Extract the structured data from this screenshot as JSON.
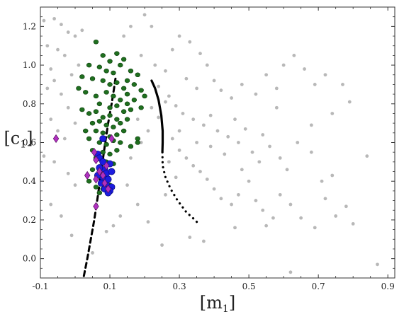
{
  "chart_data": {
    "type": "scatter",
    "xlabel": "[m",
    "xlabel_sub": "1",
    "xlabel_close": "]",
    "ylabel": "[c",
    "ylabel_sub": "1",
    "ylabel_close": "]",
    "xlim": [
      -0.1,
      0.92
    ],
    "ylim": [
      -0.1,
      1.3
    ],
    "xticks": [
      -0.1,
      0.1,
      0.3,
      0.5,
      0.7,
      0.9
    ],
    "yticks": [
      0.0,
      0.2,
      0.4,
      0.6,
      0.8,
      1.0,
      1.2
    ],
    "xtick_labels": [
      "-0.1",
      "0.1",
      "0.3",
      "0.5",
      "0.7",
      "0.9"
    ],
    "ytick_labels": [
      "0.0",
      "0.2",
      "0.4",
      "0.6",
      "0.8",
      "1.0",
      "1.2"
    ],
    "colors": {
      "gray": "#b8b8b8",
      "green": "#1f6f1f",
      "green_edge": "#0d3d0d",
      "blue": "#1c1ce0",
      "blue_edge": "#0a0a7a",
      "magenta": "#b030c0",
      "magenta_edge": "#5a1060",
      "line": "#000000"
    },
    "series": [
      {
        "marker": "circle-gray",
        "points": [
          [
            -0.09,
            1.23
          ],
          [
            -0.06,
            1.24
          ],
          [
            -0.04,
            1.21
          ],
          [
            -0.02,
            1.17
          ],
          [
            0.0,
            1.15
          ],
          [
            0.02,
            1.18
          ],
          [
            -0.08,
            1.1
          ],
          [
            -0.05,
            1.08
          ],
          [
            -0.03,
            1.05
          ],
          [
            -0.07,
            0.98
          ],
          [
            -0.06,
            0.92
          ],
          [
            -0.08,
            0.88
          ],
          [
            -0.04,
            0.85
          ],
          [
            -0.01,
            0.95
          ],
          [
            0.01,
            1.0
          ],
          [
            -0.02,
            0.78
          ],
          [
            -0.07,
            0.72
          ],
          [
            -0.05,
            0.66
          ],
          [
            -0.09,
            0.53
          ],
          [
            -0.06,
            0.5
          ],
          [
            -0.03,
            0.62
          ],
          [
            0.0,
            0.7
          ],
          [
            -0.02,
            0.44
          ],
          [
            0.0,
            0.38
          ],
          [
            -0.07,
            0.28
          ],
          [
            -0.04,
            0.22
          ],
          [
            -0.01,
            0.12
          ],
          [
            0.14,
            1.15
          ],
          [
            0.16,
            1.2
          ],
          [
            0.2,
            1.26
          ],
          [
            0.22,
            1.2
          ],
          [
            0.19,
            1.05
          ],
          [
            0.23,
            1.0
          ],
          [
            0.26,
            0.97
          ],
          [
            0.28,
            1.08
          ],
          [
            0.3,
            1.15
          ],
          [
            0.33,
            1.12
          ],
          [
            0.36,
            1.06
          ],
          [
            0.38,
            1.0
          ],
          [
            0.32,
            0.93
          ],
          [
            0.35,
            0.88
          ],
          [
            0.4,
            0.92
          ],
          [
            0.42,
            0.87
          ],
          [
            0.45,
            0.83
          ],
          [
            0.48,
            0.9
          ],
          [
            0.52,
            0.85
          ],
          [
            0.55,
            0.95
          ],
          [
            0.58,
            0.88
          ],
          [
            0.6,
            1.0
          ],
          [
            0.63,
            1.05
          ],
          [
            0.66,
            0.98
          ],
          [
            0.69,
            0.9
          ],
          [
            0.72,
            0.95
          ],
          [
            0.77,
            0.9
          ],
          [
            0.79,
            0.81
          ],
          [
            0.24,
            0.89
          ],
          [
            0.27,
            0.84
          ],
          [
            0.29,
            0.79
          ],
          [
            0.31,
            0.75
          ],
          [
            0.34,
            0.72
          ],
          [
            0.37,
            0.69
          ],
          [
            0.39,
            0.74
          ],
          [
            0.41,
            0.66
          ],
          [
            0.44,
            0.63
          ],
          [
            0.47,
            0.6
          ],
          [
            0.49,
            0.67
          ],
          [
            0.51,
            0.55
          ],
          [
            0.53,
            0.5
          ],
          [
            0.56,
            0.58
          ],
          [
            0.59,
            0.52
          ],
          [
            0.61,
            0.46
          ],
          [
            0.64,
            0.6
          ],
          [
            0.68,
            0.55
          ],
          [
            0.71,
            0.4
          ],
          [
            0.74,
            0.43
          ],
          [
            0.28,
            0.62
          ],
          [
            0.3,
            0.56
          ],
          [
            0.32,
            0.52
          ],
          [
            0.34,
            0.48
          ],
          [
            0.36,
            0.45
          ],
          [
            0.38,
            0.41
          ],
          [
            0.4,
            0.36
          ],
          [
            0.42,
            0.31
          ],
          [
            0.45,
            0.28
          ],
          [
            0.47,
            0.33
          ],
          [
            0.5,
            0.4
          ],
          [
            0.52,
            0.3
          ],
          [
            0.54,
            0.25
          ],
          [
            0.57,
            0.21
          ],
          [
            0.59,
            0.33
          ],
          [
            0.62,
            0.28
          ],
          [
            0.65,
            0.21
          ],
          [
            0.69,
            0.16
          ],
          [
            0.72,
            0.31
          ],
          [
            0.75,
            0.22
          ],
          [
            0.78,
            0.27
          ],
          [
            0.8,
            0.18
          ],
          [
            0.84,
            0.53
          ],
          [
            0.87,
            -0.03
          ],
          [
            0.62,
            -0.07
          ],
          [
            0.55,
            0.17
          ],
          [
            0.46,
            0.16
          ],
          [
            0.37,
            0.09
          ],
          [
            0.33,
            0.11
          ],
          [
            0.25,
            0.07
          ],
          [
            0.21,
            0.19
          ],
          [
            0.18,
            0.28
          ],
          [
            0.15,
            0.38
          ],
          [
            0.16,
            0.52
          ],
          [
            0.19,
            0.6
          ],
          [
            0.21,
            0.66
          ],
          [
            0.18,
            0.72
          ],
          [
            0.13,
            0.22
          ],
          [
            0.11,
            0.17
          ],
          [
            0.09,
            0.14
          ],
          [
            0.05,
            0.03
          ],
          [
            0.26,
            0.33
          ],
          [
            0.29,
            0.42
          ],
          [
            0.27,
            0.5
          ],
          [
            0.43,
            0.54
          ],
          [
            0.48,
            0.46
          ],
          [
            0.46,
            0.72
          ],
          [
            0.3,
            0.66
          ],
          [
            0.58,
            0.78
          ],
          [
            0.68,
            0.69
          ],
          [
            0.74,
            0.75
          ],
          [
            0.54,
            0.64
          ],
          [
            0.35,
            0.6
          ],
          [
            0.39,
            0.58
          ],
          [
            0.24,
            0.73
          ],
          [
            0.22,
            0.78
          ],
          [
            0.26,
            0.81
          ]
        ]
      },
      {
        "marker": "circle-green",
        "points": [
          [
            0.06,
            1.12
          ],
          [
            0.08,
            1.05
          ],
          [
            0.1,
            1.02
          ],
          [
            0.12,
            1.06
          ],
          [
            0.14,
            1.03
          ],
          [
            0.13,
            1.0
          ],
          [
            0.04,
            1.0
          ],
          [
            0.07,
            0.99
          ],
          [
            0.09,
            0.97
          ],
          [
            0.11,
            0.96
          ],
          [
            0.16,
            0.97
          ],
          [
            0.18,
            0.95
          ],
          [
            0.15,
            0.92
          ],
          [
            0.17,
            0.9
          ],
          [
            0.02,
            0.94
          ],
          [
            0.05,
            0.93
          ],
          [
            0.08,
            0.92
          ],
          [
            0.1,
            0.9
          ],
          [
            0.12,
            0.91
          ],
          [
            0.14,
            0.88
          ],
          [
            0.03,
            0.86
          ],
          [
            0.06,
            0.84
          ],
          [
            0.09,
            0.86
          ],
          [
            0.11,
            0.84
          ],
          [
            0.13,
            0.82
          ],
          [
            0.15,
            0.85
          ],
          [
            0.17,
            0.82
          ],
          [
            0.19,
            0.87
          ],
          [
            0.07,
            0.8
          ],
          [
            0.1,
            0.78
          ],
          [
            0.12,
            0.79
          ],
          [
            0.14,
            0.76
          ],
          [
            0.16,
            0.77
          ],
          [
            0.02,
            0.77
          ],
          [
            0.04,
            0.75
          ],
          [
            0.06,
            0.76
          ],
          [
            0.08,
            0.73
          ],
          [
            0.1,
            0.74
          ],
          [
            0.12,
            0.72
          ],
          [
            0.05,
            0.7
          ],
          [
            0.07,
            0.71
          ],
          [
            0.09,
            0.69
          ],
          [
            0.11,
            0.68
          ],
          [
            0.13,
            0.7
          ],
          [
            0.15,
            0.72
          ],
          [
            0.06,
            0.66
          ],
          [
            0.08,
            0.65
          ],
          [
            0.1,
            0.63
          ],
          [
            0.12,
            0.64
          ],
          [
            0.04,
            0.62
          ],
          [
            0.07,
            0.6
          ],
          [
            0.09,
            0.59
          ],
          [
            0.11,
            0.61
          ],
          [
            0.13,
            0.6
          ],
          [
            0.05,
            0.56
          ],
          [
            0.08,
            0.55
          ],
          [
            0.1,
            0.54
          ],
          [
            0.12,
            0.56
          ],
          [
            0.06,
            0.52
          ],
          [
            0.09,
            0.5
          ],
          [
            0.11,
            0.49
          ],
          [
            0.05,
            0.46
          ],
          [
            0.07,
            0.44
          ],
          [
            0.04,
            0.4
          ],
          [
            0.06,
            0.37
          ],
          [
            0.08,
            0.36
          ],
          [
            0.1,
            0.38
          ],
          [
            0.07,
            0.34
          ],
          [
            0.18,
            0.6
          ],
          [
            0.18,
            0.62
          ],
          [
            0.16,
            0.58
          ],
          [
            0.14,
            0.66
          ],
          [
            0.03,
            0.66
          ],
          [
            0.2,
            0.84
          ],
          [
            0.19,
            0.78
          ],
          [
            0.01,
            0.88
          ],
          [
            0.15,
            0.8
          ]
        ]
      },
      {
        "marker": "circle-blue",
        "points": [
          [
            0.065,
            0.54
          ],
          [
            0.07,
            0.52
          ],
          [
            0.08,
            0.62
          ],
          [
            0.1,
            0.49
          ],
          [
            0.085,
            0.46
          ],
          [
            0.07,
            0.47
          ],
          [
            0.09,
            0.44
          ],
          [
            0.105,
            0.45
          ],
          [
            0.08,
            0.42
          ],
          [
            0.065,
            0.43
          ],
          [
            0.095,
            0.41
          ],
          [
            0.075,
            0.39
          ],
          [
            0.09,
            0.38
          ],
          [
            0.105,
            0.37
          ],
          [
            0.085,
            0.36
          ],
          [
            0.1,
            0.35
          ],
          [
            0.095,
            0.34
          ],
          [
            0.08,
            0.5
          ]
        ]
      },
      {
        "marker": "diamond-magenta",
        "points": [
          [
            -0.055,
            0.62
          ],
          [
            0.105,
            0.62
          ],
          [
            0.055,
            0.55
          ],
          [
            0.06,
            0.51
          ],
          [
            0.09,
            0.48
          ],
          [
            0.07,
            0.45
          ],
          [
            0.08,
            0.43
          ],
          [
            0.035,
            0.43
          ],
          [
            0.06,
            0.41
          ],
          [
            0.085,
            0.39
          ],
          [
            0.095,
            0.36
          ],
          [
            0.06,
            0.27
          ]
        ]
      }
    ],
    "lines": [
      {
        "style": "dashed",
        "points": [
          [
            0.025,
            -0.09
          ],
          [
            0.035,
            0.0
          ],
          [
            0.045,
            0.1
          ],
          [
            0.055,
            0.2
          ],
          [
            0.065,
            0.32
          ],
          [
            0.075,
            0.45
          ],
          [
            0.085,
            0.58
          ],
          [
            0.095,
            0.7
          ],
          [
            0.105,
            0.8
          ],
          [
            0.112,
            0.88
          ],
          [
            0.116,
            0.93
          ]
        ]
      },
      {
        "style": "solid",
        "points": [
          [
            0.22,
            0.92
          ],
          [
            0.23,
            0.88
          ],
          [
            0.24,
            0.82
          ],
          [
            0.248,
            0.74
          ],
          [
            0.252,
            0.66
          ],
          [
            0.252,
            0.6
          ],
          [
            0.251,
            0.55
          ]
        ]
      },
      {
        "style": "dotted",
        "points": [
          [
            0.251,
            0.55
          ],
          [
            0.252,
            0.48
          ],
          [
            0.26,
            0.42
          ],
          [
            0.275,
            0.36
          ],
          [
            0.295,
            0.3
          ],
          [
            0.32,
            0.24
          ],
          [
            0.345,
            0.2
          ],
          [
            0.355,
            0.18
          ]
        ]
      }
    ]
  }
}
